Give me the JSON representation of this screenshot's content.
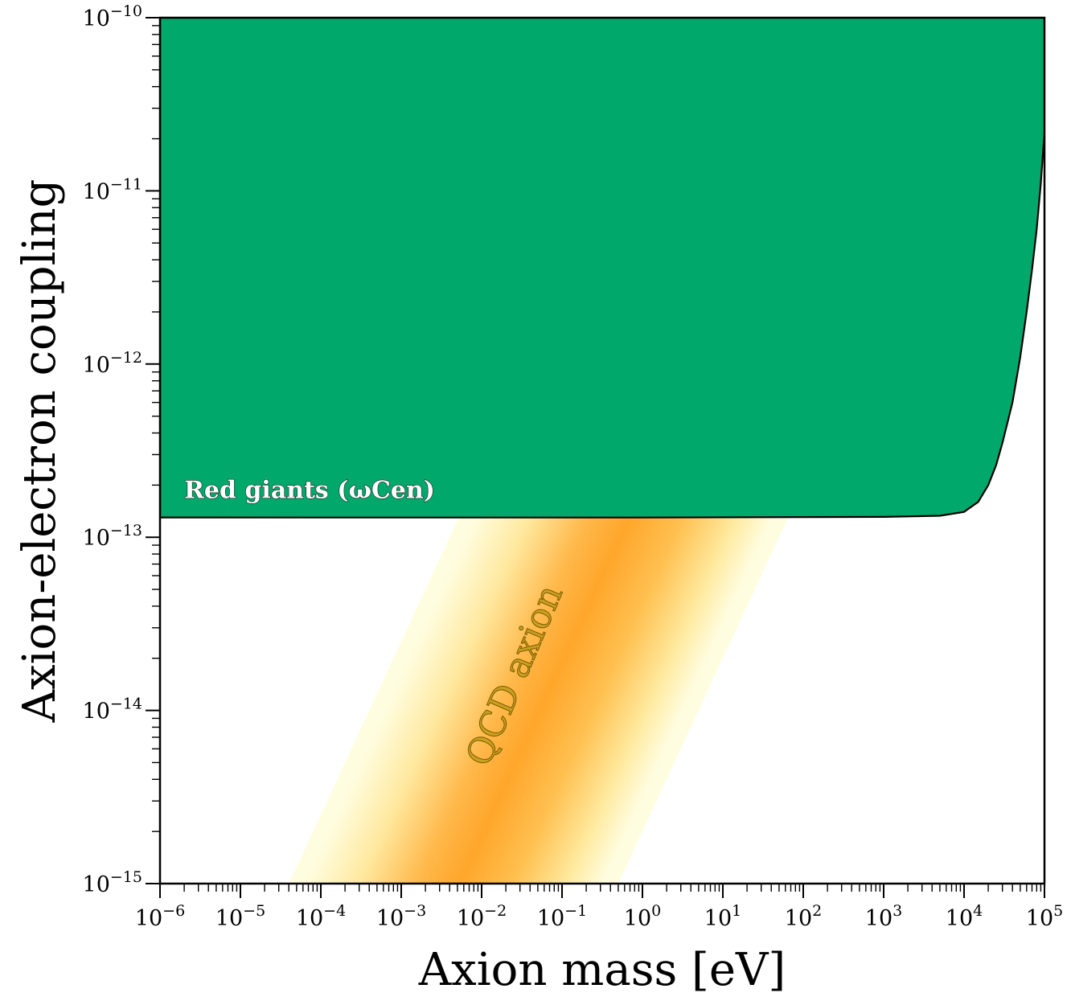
{
  "chart_data": {
    "type": "area",
    "xlabel": "Axion mass [eV]",
    "ylabel": "Axion-electron coupling",
    "xscale": "log",
    "yscale": "log",
    "xlim": [
      1e-06,
      100000.0
    ],
    "ylim": [
      1e-15,
      1e-10
    ],
    "x_tick_labels": [
      {
        "base": "10",
        "exp": "−6"
      },
      {
        "base": "10",
        "exp": "−5"
      },
      {
        "base": "10",
        "exp": "−4"
      },
      {
        "base": "10",
        "exp": "−3"
      },
      {
        "base": "10",
        "exp": "−2"
      },
      {
        "base": "10",
        "exp": "−1"
      },
      {
        "base": "10",
        "exp": "0"
      },
      {
        "base": "10",
        "exp": "1"
      },
      {
        "base": "10",
        "exp": "2"
      },
      {
        "base": "10",
        "exp": "3"
      },
      {
        "base": "10",
        "exp": "4"
      },
      {
        "base": "10",
        "exp": "5"
      }
    ],
    "y_tick_labels": [
      {
        "base": "10",
        "exp": "−15"
      },
      {
        "base": "10",
        "exp": "−14"
      },
      {
        "base": "10",
        "exp": "−13"
      },
      {
        "base": "10",
        "exp": "−12"
      },
      {
        "base": "10",
        "exp": "−11"
      },
      {
        "base": "10",
        "exp": "−10"
      }
    ],
    "grid": false,
    "regions": [
      {
        "name": "Red giants (ωCen)",
        "color": "#00a86b",
        "boundary_x": [
          1e-06,
          1.0,
          1000.0,
          5000.0,
          10000.0,
          15000.0,
          20000.0,
          25000.0,
          30000.0,
          40000.0,
          50000.0,
          60000.0,
          70000.0,
          80000.0,
          90000.0,
          100000.0
        ],
        "boundary_y": [
          1.3e-13,
          1.3e-13,
          1.31e-13,
          1.33e-13,
          1.4e-13,
          1.6e-13,
          2e-13,
          2.6e-13,
          3.5e-13,
          6e-13,
          1.1e-12,
          2e-12,
          3.5e-12,
          6e-12,
          1.1e-11,
          2.2e-11
        ]
      }
    ],
    "bands": [
      {
        "name": "QCD axion",
        "colors": [
          "#ffa62b",
          "#fffde0"
        ],
        "lower_edge_x_at_ymin": 4e-05,
        "upper_edge_x_at_ymin": 0.5,
        "center_x_at_ymin": 0.003,
        "slope": 1.0
      }
    ]
  }
}
